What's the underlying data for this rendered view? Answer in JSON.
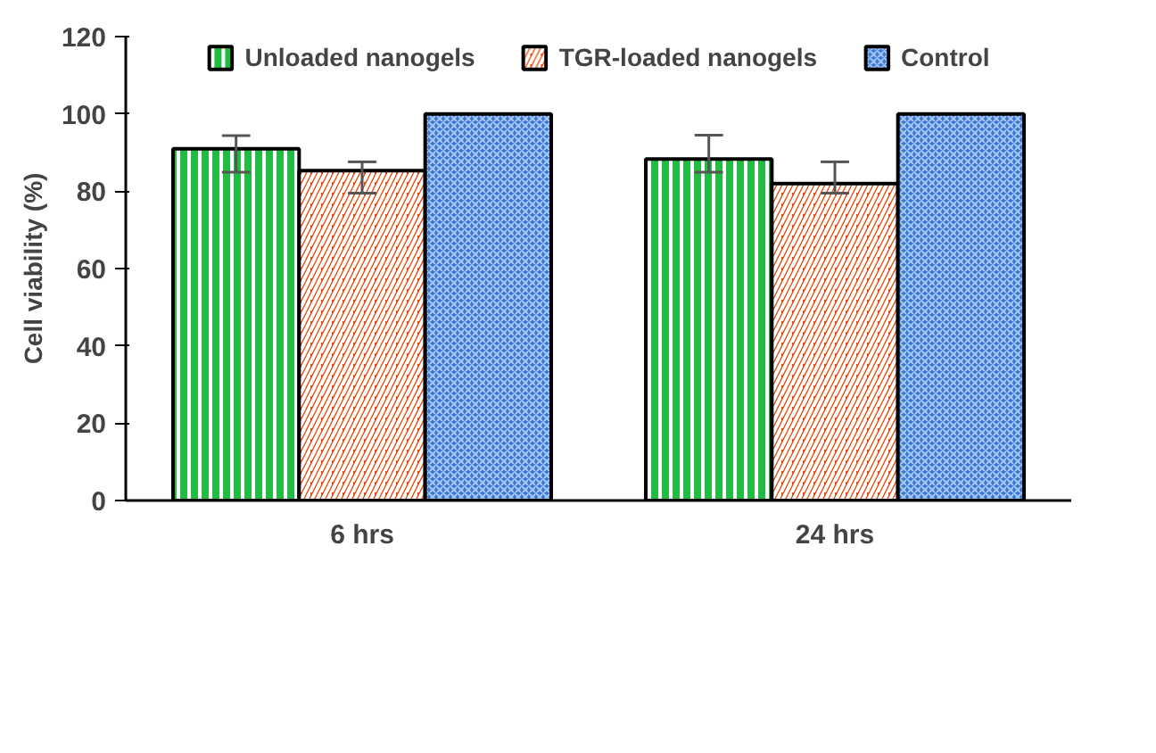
{
  "chart_data": {
    "type": "bar",
    "ylabel": "Cell viability (%)",
    "categories": [
      "6 hrs",
      "24 hrs"
    ],
    "ylim": [
      0,
      120
    ],
    "yticks": [
      0,
      20,
      40,
      60,
      80,
      100,
      120
    ],
    "grid": false,
    "legend": "top",
    "series": [
      {
        "name": "Unloaded nanogels",
        "color": "#22bb44",
        "values": [
          91,
          88.3
        ],
        "errors": [
          [
            84.9,
            94.4
          ],
          [
            84.9,
            94.5
          ]
        ]
      },
      {
        "name": "TGR-loaded nanogels",
        "color": "#e84a0c",
        "values": [
          85.3,
          82
        ],
        "errors": [
          [
            79.5,
            87.6
          ],
          [
            79.5,
            87.6
          ]
        ]
      },
      {
        "name": "Control",
        "color": "#3a78d8",
        "values": [
          100,
          100
        ],
        "errors": [
          null,
          null
        ]
      }
    ]
  }
}
